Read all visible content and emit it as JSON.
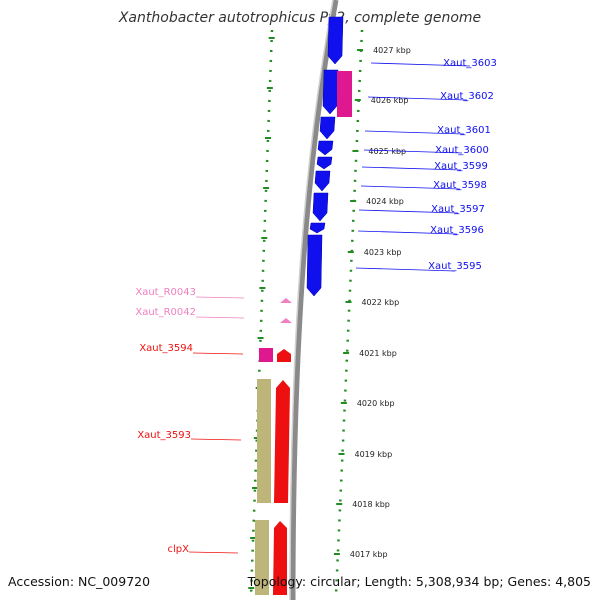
{
  "title": "Xanthobacter autotrophicus Py2, complete genome",
  "footer": {
    "accession": "Accession: NC_009720",
    "summary": "Topology: circular; Length: 5,308,934 bp; Genes: 4,805"
  },
  "colors": {
    "cds_plus": "#1010ee",
    "cds_minus": "#ee1010",
    "rna": "#f080c0",
    "pseudo": "#e01890",
    "khaki": "#bdb57a",
    "grid": "#228b22",
    "backbone": "#8a8a8a"
  },
  "ruler": {
    "ticks": [
      "4027 kbp",
      "4026 kbp",
      "4025 kbp",
      "4024 kbp",
      "4023 kbp",
      "4022 kbp",
      "4021 kbp",
      "4020 kbp",
      "4019 kbp",
      "4018 kbp",
      "4017 kbp"
    ]
  },
  "genes": [
    {
      "label": "Xaut_3603",
      "kind": "cds_plus"
    },
    {
      "label": "Xaut_3602",
      "kind": "cds_plus"
    },
    {
      "label": "Xaut_3601",
      "kind": "cds_plus"
    },
    {
      "label": "Xaut_3600",
      "kind": "cds_plus"
    },
    {
      "label": "Xaut_3599",
      "kind": "cds_plus"
    },
    {
      "label": "Xaut_3598",
      "kind": "cds_plus"
    },
    {
      "label": "Xaut_3597",
      "kind": "cds_plus"
    },
    {
      "label": "Xaut_3596",
      "kind": "cds_plus"
    },
    {
      "label": "Xaut_3595",
      "kind": "cds_plus"
    },
    {
      "label": "Xaut_R0043",
      "kind": "rna"
    },
    {
      "label": "Xaut_R0042",
      "kind": "rna"
    },
    {
      "label": "Xaut_3594",
      "kind": "cds_minus"
    },
    {
      "label": "Xaut_3593",
      "kind": "cds_minus"
    },
    {
      "label": "clpX",
      "kind": "cds_minus"
    }
  ]
}
